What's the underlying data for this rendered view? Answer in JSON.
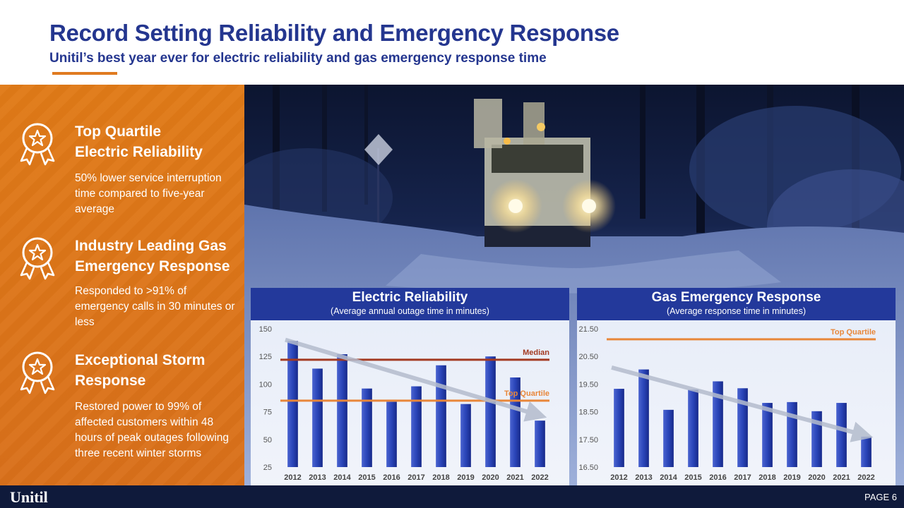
{
  "header": {
    "title": "Record Setting Reliability and Emergency Response",
    "subtitle": "Unitil’s best year ever for electric reliability and gas emergency response time"
  },
  "features": [
    {
      "icon": "award-ribbon-icon",
      "title_line1": "Top Quartile",
      "title_line2": "Electric Reliability",
      "body": "50% lower service interruption time compared to five-year average"
    },
    {
      "icon": "award-ribbon-icon",
      "title_line1": "Industry Leading Gas",
      "title_line2": "Emergency Response",
      "body": "Responded to >91% of emergency calls in 30 minutes or less"
    },
    {
      "icon": "award-ribbon-icon",
      "title_line1": "Exceptional Storm",
      "title_line2": "Response",
      "body": "Restored power to 99% of affected customers within 48 hours of peak outages following three recent winter storms"
    }
  ],
  "colors": {
    "brand_blue": "#24368f",
    "accent_orange": "#e07a20",
    "bar_blue": "#2a45b8",
    "median_red": "#a33a22",
    "quartile_orange": "#e8873a"
  },
  "chart_data": [
    {
      "type": "bar",
      "title": "Electric Reliability",
      "subtitle": "(Average annual outage time in minutes)",
      "categories": [
        "2012",
        "2013",
        "2014",
        "2015",
        "2016",
        "2017",
        "2018",
        "2019",
        "2020",
        "2021",
        "2022"
      ],
      "values": [
        139,
        114,
        127,
        96,
        84,
        98,
        117,
        82,
        125,
        106,
        67
      ],
      "ylim": [
        25,
        150
      ],
      "yticks": [
        "150",
        "125",
        "100",
        "75",
        "50",
        "25"
      ],
      "ytick_values": [
        150,
        125,
        100,
        75,
        50,
        25
      ],
      "reference_lines": [
        {
          "label": "Median",
          "value": 122,
          "color": "#a33a22"
        },
        {
          "label": "Top Quartile",
          "value": 85,
          "color": "#e8873a"
        }
      ],
      "trend_arrow": {
        "from_value": 140,
        "to_value": 72
      }
    },
    {
      "type": "bar",
      "title": "Gas Emergency Response",
      "subtitle": "(Average response time in minutes)",
      "categories": [
        "2012",
        "2013",
        "2014",
        "2015",
        "2016",
        "2017",
        "2018",
        "2019",
        "2020",
        "2021",
        "2022"
      ],
      "values": [
        19.33,
        20.03,
        18.57,
        19.3,
        19.6,
        19.35,
        18.82,
        18.85,
        18.52,
        18.82,
        17.6
      ],
      "ylim": [
        16.5,
        21.5
      ],
      "yticks": [
        "21.50",
        "20.50",
        "19.50",
        "18.50",
        "17.50",
        "16.50"
      ],
      "ytick_values": [
        21.5,
        20.5,
        19.5,
        18.5,
        17.5,
        16.5
      ],
      "reference_lines": [
        {
          "label": "Top Quartile",
          "value": 21.12,
          "color": "#e8873a"
        }
      ],
      "trend_arrow": {
        "from_value": 20.1,
        "to_value": 17.65
      }
    }
  ],
  "footer": {
    "logo_text": "Unitil",
    "page_label": "PAGE 6"
  }
}
